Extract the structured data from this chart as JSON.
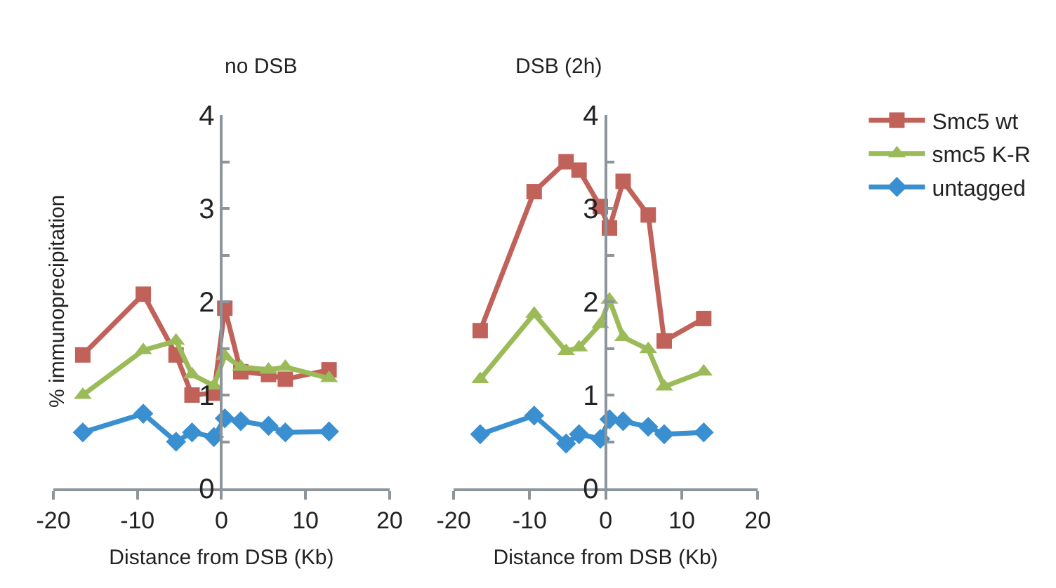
{
  "chart_data": [
    {
      "type": "line",
      "title": "no DSB",
      "xlabel": "Distance from DSB (Kb)",
      "ylabel": "% immunoprecipitation",
      "x": [
        -16.5,
        -9.3,
        -5.4,
        -3.5,
        -0.9,
        0.4,
        2.3,
        5.6,
        7.6,
        12.8
      ],
      "series": [
        {
          "color": "#c0625a",
          "marker": "square",
          "values": [
            1.43,
            2.08,
            1.43,
            1.0,
            1.02,
            1.93,
            1.25,
            1.22,
            1.17,
            1.27
          ]
        },
        {
          "color": "#9bbb59",
          "marker": "triangle",
          "values": [
            1.0,
            1.48,
            1.58,
            1.22,
            1.1,
            1.42,
            1.3,
            1.27,
            1.3,
            1.18
          ]
        },
        {
          "color": "#3a8fd0",
          "marker": "diamond",
          "values": [
            0.6,
            0.8,
            0.5,
            0.6,
            0.55,
            0.75,
            0.72,
            0.67,
            0.6,
            0.61
          ]
        }
      ],
      "xlim": [
        -20,
        20
      ],
      "xticks": [
        -20,
        -10,
        0,
        10,
        20
      ],
      "ylim": [
        0,
        4
      ],
      "yticks": [
        0,
        {
          "value": 0.5,
          "label": null
        },
        1,
        {
          "value": 1.5,
          "label": null
        },
        2,
        {
          "value": 2.5,
          "label": null
        },
        3,
        {
          "value": 3.5,
          "label": null
        },
        4
      ]
    },
    {
      "type": "line",
      "title": "DSB (2h)",
      "xlabel": "Distance from DSB (Kb)",
      "x": [
        -16.5,
        -9.4,
        -5.2,
        -3.5,
        -0.7,
        0.5,
        2.3,
        5.6,
        7.7,
        12.9
      ],
      "series": [
        {
          "name": "Smc5 wt",
          "color": "#c0625a",
          "marker": "square",
          "values": [
            1.69,
            3.18,
            3.5,
            3.41,
            3.02,
            2.79,
            3.29,
            2.93,
            1.58,
            1.82
          ]
        },
        {
          "name": "smc5 K-R",
          "color": "#9bbb59",
          "marker": "triangle",
          "values": [
            1.17,
            1.87,
            1.47,
            1.51,
            1.76,
            2.02,
            1.62,
            1.49,
            1.09,
            1.25
          ]
        },
        {
          "name": "untagged",
          "color": "#3a8fd0",
          "marker": "diamond",
          "values": [
            0.58,
            0.78,
            0.48,
            0.58,
            0.53,
            0.74,
            0.72,
            0.66,
            0.58,
            0.6
          ]
        }
      ],
      "xlim": [
        -20,
        20
      ],
      "xticks": [
        -20,
        -10,
        0,
        10,
        20
      ],
      "ylim": [
        0,
        4
      ],
      "yticks": [
        0,
        {
          "value": 0.5,
          "label": null
        },
        1,
        {
          "value": 1.5,
          "label": null
        },
        2,
        {
          "value": 2.5,
          "label": null
        },
        3,
        {
          "value": 3.5,
          "label": null
        },
        4
      ],
      "legend": "top right"
    }
  ]
}
